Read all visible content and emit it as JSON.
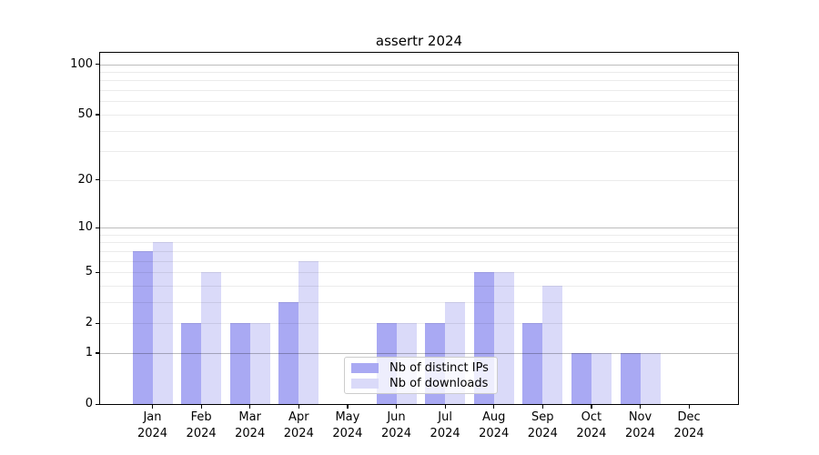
{
  "title": "assertr 2024",
  "chart_data": {
    "type": "bar",
    "title": "assertr 2024",
    "xlabel": "",
    "ylabel": "",
    "year_label": "2024",
    "categories": [
      "Jan",
      "Feb",
      "Mar",
      "Apr",
      "May",
      "Jun",
      "Jul",
      "Aug",
      "Sep",
      "Oct",
      "Nov",
      "Dec"
    ],
    "series": [
      {
        "name": "Nb of distinct IPs",
        "color": "#a9a9f3",
        "values": [
          7,
          2,
          2,
          3,
          0,
          2,
          2,
          5,
          2,
          1,
          1,
          0
        ]
      },
      {
        "name": "Nb of downloads",
        "color": "#dadaf9",
        "values": [
          8,
          5,
          2,
          6,
          0,
          2,
          3,
          5,
          4,
          1,
          1,
          0
        ]
      }
    ],
    "yscale": "log1p",
    "ylim": [
      0,
      117
    ],
    "yticks_labeled": [
      0,
      1,
      2,
      5,
      10,
      20,
      50,
      100
    ],
    "yticks_decade": [
      1,
      10,
      100
    ],
    "yticks_minor": [
      3,
      4,
      6,
      7,
      8,
      9,
      30,
      40,
      60,
      70,
      80,
      90
    ],
    "grid": true,
    "grid_color_decade": "rgba(0,0,0,0.26)",
    "grid_color_minor": "rgba(0,0,0,0.08)",
    "legend_position": "lower-center",
    "background_color": "#ffffff"
  }
}
